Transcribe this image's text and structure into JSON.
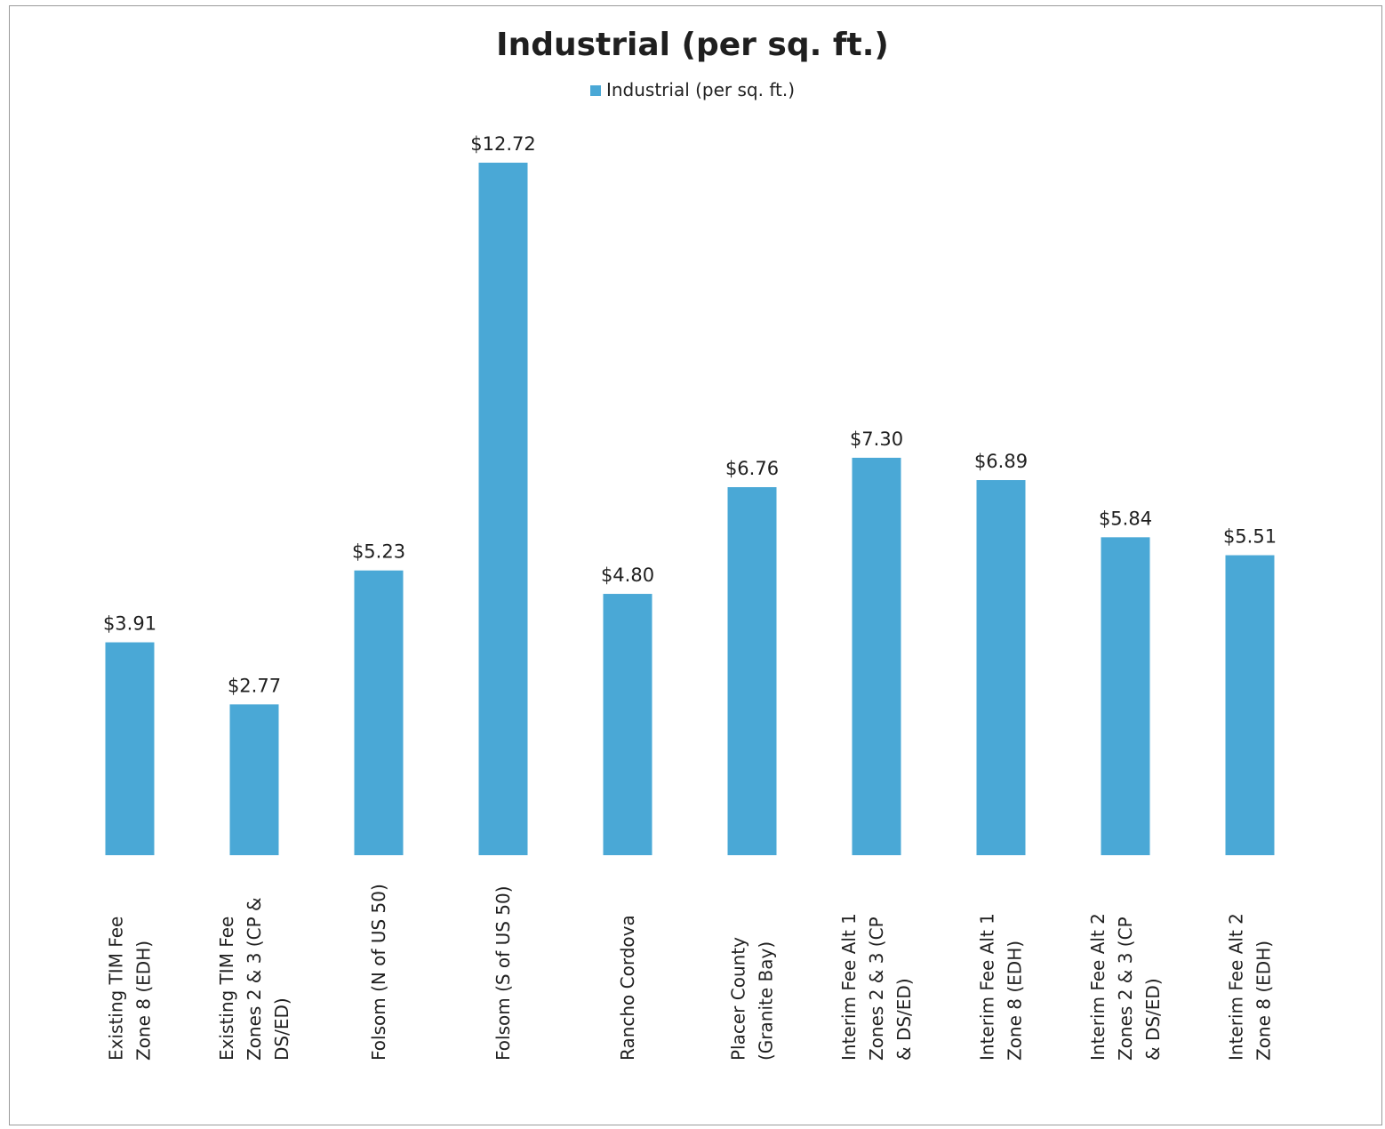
{
  "chart_data": {
    "type": "bar",
    "title": "Industrial (per sq. ft.)",
    "legend": [
      "Industrial (per sq. ft.)"
    ],
    "legend_position": "top-center",
    "categories": [
      [
        "Existing TIM Fee",
        "Zone 8 (EDH)"
      ],
      [
        "Existing TIM Fee",
        "Zones 2 & 3 (CP &",
        "DS/ED)"
      ],
      [
        "Folsom (N of US 50)"
      ],
      [
        "Folsom (S of US 50)"
      ],
      [
        "Rancho Cordova"
      ],
      [
        "Placer County",
        "(Granite Bay)"
      ],
      [
        "Interim Fee Alt 1",
        "Zones 2 & 3 (CP",
        "& DS/ED)"
      ],
      [
        "Interim Fee Alt 1",
        "Zone 8 (EDH)"
      ],
      [
        "Interim Fee Alt 2",
        "Zones 2 & 3 (CP",
        "& DS/ED)"
      ],
      [
        "Interim Fee Alt 2",
        "Zone 8 (EDH)"
      ]
    ],
    "series": [
      {
        "name": "Industrial (per sq. ft.)",
        "values": [
          3.91,
          2.77,
          5.23,
          12.72,
          4.8,
          6.76,
          7.3,
          6.89,
          5.84,
          5.51
        ]
      }
    ],
    "data_labels": [
      "$3.91",
      "$2.77",
      "$5.23",
      "$12.72",
      "$4.80",
      "$6.76",
      "$7.30",
      "$6.89",
      "$5.84",
      "$5.51"
    ],
    "ylim": [
      0,
      12.72
    ],
    "grid": false,
    "colors": {
      "bar": "#4aa8d6"
    }
  }
}
